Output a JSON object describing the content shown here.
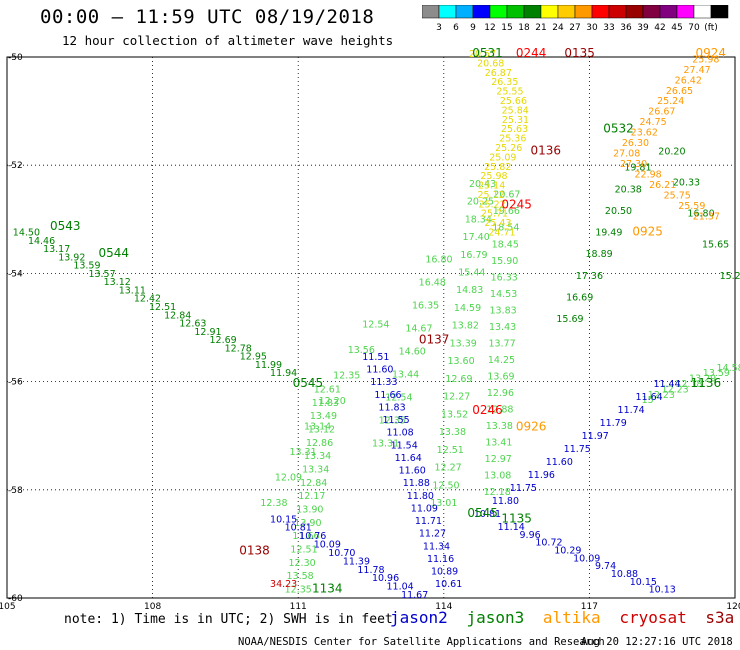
{
  "header": {
    "title": "00:00 – 11:59 UTC 08/19/2018",
    "subtitle": "12 hour collection of altimeter wave heights"
  },
  "colorbar": {
    "colors": [
      "#8c8c8c",
      "#00ffff",
      "#00b0ff",
      "#0000ff",
      "#00ff00",
      "#00c000",
      "#008000",
      "#ffff00",
      "#ffcc00",
      "#ff9900",
      "#ff0000",
      "#cc0000",
      "#990000",
      "#800040",
      "#800080",
      "#ff00ff",
      "#ffffff",
      "#000000"
    ],
    "labels": [
      "3",
      "6",
      "9",
      "12",
      "15",
      "18",
      "21",
      "24",
      "27",
      "30",
      "33",
      "36",
      "39",
      "42",
      "45",
      "70",
      "(ft)"
    ]
  },
  "axes": {
    "lat_ticks": [
      "-50",
      "-52",
      "-54",
      "-56",
      "-58",
      "-60"
    ],
    "lon_ticks": [
      "105",
      "108",
      "111",
      "114",
      "117",
      "120"
    ]
  },
  "note": "note: 1) Time is in UTC; 2) SWH is in feet",
  "legend": [
    {
      "name": "jason2",
      "color": "#0000cc"
    },
    {
      "name": "jason3",
      "color": "#008000"
    },
    {
      "name": "altika",
      "color": "#ff9900"
    },
    {
      "name": "cryosat",
      "color": "#cc0000"
    },
    {
      "name": "s3a",
      "color": "#990000"
    }
  ],
  "footer": {
    "credit": "NOAA/NESDIS Center for Satellite Applications and Research",
    "generated": "Aug 20 12:27:16 UTC 2018"
  },
  "chart_data": {
    "type": "scatter",
    "xlim": [
      105,
      120
    ],
    "ylim": [
      -60,
      -50
    ],
    "time_labels": [
      {
        "text": "0543",
        "lon": 106.2,
        "lat": -53.2,
        "color": "#008000"
      },
      {
        "text": "0544",
        "lon": 107.2,
        "lat": -53.7,
        "color": "#008000"
      },
      {
        "text": "0545",
        "lon": 111.2,
        "lat": -56.1,
        "color": "#008000"
      },
      {
        "text": "0545",
        "lon": 114.8,
        "lat": -58.5,
        "color": "#008000"
      },
      {
        "text": "1135",
        "lon": 115.5,
        "lat": -58.6,
        "color": "#008000"
      },
      {
        "text": "1134",
        "lon": 111.6,
        "lat": -59.9,
        "color": "#008000"
      },
      {
        "text": "1136",
        "lon": 119.4,
        "lat": -56.1,
        "color": "#008000"
      },
      {
        "text": "0532",
        "lon": 117.6,
        "lat": -51.4,
        "color": "#008000"
      },
      {
        "text": "0531",
        "lon": 114.9,
        "lat": -50.0,
        "color": "#008000"
      },
      {
        "text": "0244",
        "lon": 115.8,
        "lat": -50.0,
        "color": "#ff0000"
      },
      {
        "text": "0135",
        "lon": 116.8,
        "lat": -50.0,
        "color": "#990000"
      },
      {
        "text": "0924",
        "lon": 119.5,
        "lat": -50.0,
        "color": "#ff9900"
      },
      {
        "text": "0136",
        "lon": 116.1,
        "lat": -51.8,
        "color": "#990000"
      },
      {
        "text": "0245",
        "lon": 115.5,
        "lat": -52.8,
        "color": "#ff0000"
      },
      {
        "text": "0925",
        "lon": 118.2,
        "lat": -53.3,
        "color": "#ff9900"
      },
      {
        "text": "0137",
        "lon": 113.8,
        "lat": -55.3,
        "color": "#990000"
      },
      {
        "text": "0246",
        "lon": 114.9,
        "lat": -56.6,
        "color": "#ff0000"
      },
      {
        "text": "0926",
        "lon": 115.8,
        "lat": -56.9,
        "color": "#ff9900"
      },
      {
        "text": "0138",
        "lon": 110.1,
        "lat": -59.2,
        "color": "#990000"
      }
    ],
    "tracks": [
      {
        "satellite": "jason3",
        "color": "#008000",
        "values": [
          "14.50",
          "14.46",
          "13.17",
          "13.92",
          "13.59",
          "13.57",
          "13.12",
          "13.11",
          "12.42",
          "12.51",
          "12.84",
          "12.63",
          "12.91",
          "12.69",
          "12.78",
          "12.95",
          "11.99",
          "11.94"
        ]
      },
      {
        "satellite": "jason3",
        "color": "#4fd44f",
        "values": [
          "12.61",
          "11.83",
          "13.49",
          "13.12",
          "12.86",
          "13.34",
          "13.34",
          "12.84",
          "12.17",
          "13.90",
          "13.90",
          "11.66",
          "12.51",
          "12.30",
          "13.58",
          "12.35"
        ]
      },
      {
        "satellite": "jason3",
        "color": "#4fd44f",
        "values": [
          "12.54",
          "13.56",
          "12.35",
          "12.20",
          "13.14",
          "13.31",
          "12.09",
          "12.38"
        ]
      },
      {
        "satellite": "jason3",
        "color": "#4fd44f",
        "values": [
          "16.80",
          "16.48",
          "16.35",
          "14.67",
          "14.60",
          "13.44",
          "12.54",
          "12.35",
          "13.31"
        ]
      },
      {
        "satellite": "jason3",
        "color": "#4fd44f",
        "values": [
          "20.43",
          "20.25",
          "18.34",
          "17.40",
          "16.79",
          "15.44",
          "14.83",
          "14.59",
          "13.82",
          "13.39",
          "13.60",
          "12.69",
          "12.27",
          "13.52",
          "13.38",
          "12.51",
          "12.27",
          "12.50",
          "13.01"
        ]
      },
      {
        "satellite": "jason3",
        "color": "#4fd44f",
        "values": [
          "20.67",
          "19.66",
          "18.54",
          "18.45",
          "15.90",
          "16.33",
          "14.53",
          "13.83",
          "13.43",
          "13.77",
          "14.25",
          "13.69",
          "12.96",
          "12.88",
          "13.38",
          "13.41",
          "12.97",
          "13.08",
          "12.18"
        ]
      },
      {
        "satellite": "jason3",
        "color": "#008000",
        "values": [
          "19.81",
          "20.38",
          "20.50",
          "19.49",
          "18.89",
          "17.36",
          "16.69",
          "15.69"
        ]
      },
      {
        "satellite": "jason3",
        "color": "#008000",
        "values": [
          "20.20",
          "20.33",
          "16.80",
          "15.65",
          "15.2"
        ]
      },
      {
        "satellite": "jason3",
        "color": "#4fd44f",
        "values": [
          "14.58",
          "13.59",
          "13.29",
          "12.18",
          "12.23",
          "12.23",
          "15"
        ]
      },
      {
        "satellite": "jason2",
        "color": "#0000cc",
        "values": [
          "11.51",
          "11.60",
          "11.33",
          "11.66",
          "11.83",
          "11.55",
          "11.08",
          "11.54",
          "11.64",
          "11.60",
          "11.88",
          "11.80",
          "11.09",
          "11.71",
          "11.27",
          "11.34",
          "11.16",
          "10.89",
          "10.61"
        ]
      },
      {
        "satellite": "jason2",
        "color": "#0000cc",
        "values": [
          "11.44",
          "11.64",
          "11.74",
          "11.79",
          "11.97",
          "11.75",
          "11.60",
          "11.96",
          "11.75",
          "11.80",
          "10.81",
          "11.14",
          "9.96",
          "10.72",
          "10.29",
          "10.09",
          "9.74",
          "10.88",
          "10.15",
          "10.13"
        ]
      },
      {
        "satellite": "jason2",
        "color": "#0000cc",
        "values": [
          "10.15",
          "10.81",
          "10.76",
          "10.09",
          "10.70",
          "11.39",
          "11.78",
          "10.96",
          "11.04",
          "11.67"
        ]
      },
      {
        "satellite": "cryosat",
        "color": "#cc0000",
        "values": [
          "34.23"
        ]
      },
      {
        "satellite": "altika",
        "color": "#e6d800",
        "values": [
          "20.57",
          "20.68",
          "26.87",
          "26.35",
          "25.55",
          "25.66",
          "25.84",
          "25.31",
          "25.63",
          "25.36",
          "25.26",
          "25.09",
          "25.82",
          "25.98",
          "25.14",
          "25.12",
          "25.22",
          "25.71",
          "25.43",
          "24.71"
        ]
      },
      {
        "satellite": "altika",
        "color": "#ff9900",
        "values": [
          "25.98",
          "27.47",
          "26.42",
          "26.65",
          "25.24",
          "26.67",
          "24.75",
          "23.62",
          "26.30",
          "27.08",
          "27.30",
          "22.98",
          "26.21",
          "25.75",
          "25.59",
          "21.37"
        ]
      }
    ]
  }
}
